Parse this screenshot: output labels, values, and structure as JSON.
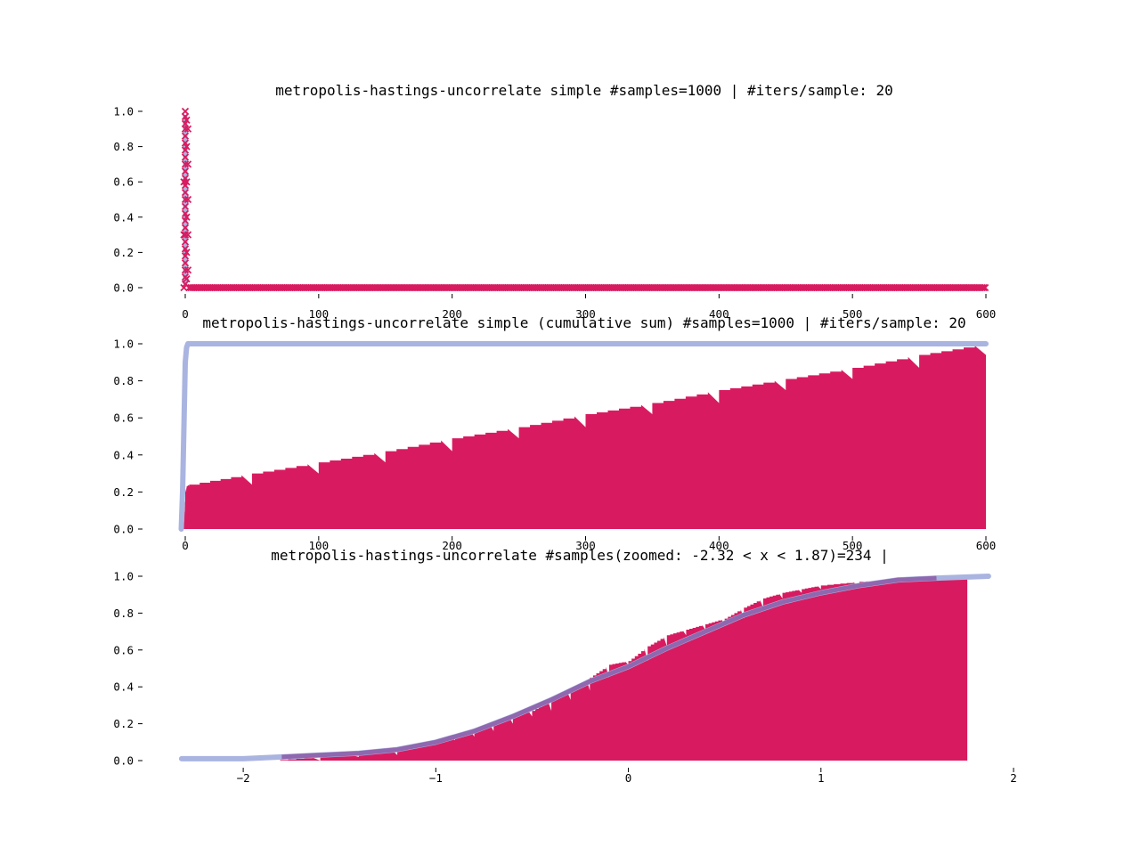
{
  "colors": {
    "samples": "#d81b60",
    "reference": "#aab4e0",
    "overlap": "#8c5faa",
    "background": "#ffffff"
  },
  "chart_data": [
    {
      "type": "scatter",
      "title": "metropolis-hastings-uncorrelate simple #samples=1000 | #iters/sample: 20",
      "xlabel": "",
      "ylabel": "",
      "xlim": [
        0,
        600
      ],
      "ylim": [
        0.0,
        1.0
      ],
      "xticks": [
        {
          "v": 0,
          "label": "0"
        },
        {
          "v": 100,
          "label": "100"
        },
        {
          "v": 200,
          "label": "200"
        },
        {
          "v": 300,
          "label": "300"
        },
        {
          "v": 400,
          "label": "400"
        },
        {
          "v": 500,
          "label": "500"
        },
        {
          "v": 600,
          "label": "600"
        }
      ],
      "yticks": [
        {
          "v": 0.0,
          "label": "0.0"
        },
        {
          "v": 0.2,
          "label": "0.2"
        },
        {
          "v": 0.4,
          "label": "0.4"
        },
        {
          "v": 0.6,
          "label": "0.6"
        },
        {
          "v": 0.8,
          "label": "0.8"
        },
        {
          "v": 1.0,
          "label": "1.0"
        }
      ],
      "series": [
        {
          "marker": "x",
          "description_points": [
            [
              0,
              1.0
            ],
            [
              0,
              0.97
            ],
            [
              0,
              0.93
            ],
            [
              0,
              0.9
            ],
            [
              0,
              0.86
            ],
            [
              0,
              0.82
            ],
            [
              0,
              0.78
            ],
            [
              0,
              0.74
            ],
            [
              0,
              0.7
            ],
            [
              0,
              0.66
            ],
            [
              0,
              0.62
            ],
            [
              0,
              0.58
            ],
            [
              0,
              0.54
            ],
            [
              0,
              0.5
            ],
            [
              0,
              0.46
            ],
            [
              0,
              0.42
            ],
            [
              0,
              0.38
            ],
            [
              0,
              0.34
            ],
            [
              0,
              0.3
            ],
            [
              0,
              0.26
            ],
            [
              0,
              0.22
            ],
            [
              0,
              0.18
            ],
            [
              0,
              0.14
            ],
            [
              0,
              0.1
            ],
            [
              0,
              0.06
            ],
            [
              0,
              0.02
            ],
            [
              1,
              0.95
            ],
            [
              1,
              0.8
            ],
            [
              1,
              0.6
            ],
            [
              1,
              0.4
            ],
            [
              1,
              0.2
            ],
            [
              1,
              0.05
            ],
            [
              2,
              0.9
            ],
            [
              2,
              0.7
            ],
            [
              2,
              0.5
            ],
            [
              2,
              0.3
            ],
            [
              2,
              0.1
            ],
            [
              -1,
              0.6
            ],
            [
              -1,
              0.3
            ],
            [
              -1,
              0.0
            ]
          ],
          "zero_range": [
            3,
            600
          ]
        }
      ],
      "grid": false,
      "legend": "none"
    },
    {
      "type": "area",
      "title": "metropolis-hastings-uncorrelate simple (cumulative sum) #samples=1000 | #iters/sample: 20",
      "xlabel": "",
      "ylabel": "",
      "xlim": [
        0,
        600
      ],
      "ylim": [
        0.0,
        1.0
      ],
      "xticks": [
        {
          "v": 0,
          "label": "0"
        },
        {
          "v": 100,
          "label": "100"
        },
        {
          "v": 200,
          "label": "200"
        },
        {
          "v": 300,
          "label": "300"
        },
        {
          "v": 400,
          "label": "400"
        },
        {
          "v": 500,
          "label": "500"
        },
        {
          "v": 600,
          "label": "600"
        }
      ],
      "yticks": [
        {
          "v": 0.0,
          "label": "0.0"
        },
        {
          "v": 0.2,
          "label": "0.2"
        },
        {
          "v": 0.4,
          "label": "0.4"
        },
        {
          "v": 0.6,
          "label": "0.6"
        },
        {
          "v": 0.8,
          "label": "0.8"
        },
        {
          "v": 1.0,
          "label": "1.0"
        }
      ],
      "series": [
        {
          "kind": "bars",
          "x": [
            -3,
            -1,
            0,
            1,
            3,
            50,
            100,
            150,
            200,
            250,
            300,
            350,
            400,
            450,
            500,
            550,
            600
          ],
          "y": [
            0.0,
            0.04,
            0.2,
            0.23,
            0.24,
            0.3,
            0.36,
            0.42,
            0.49,
            0.55,
            0.62,
            0.68,
            0.75,
            0.81,
            0.87,
            0.94,
            1.0
          ]
        },
        {
          "kind": "line",
          "x": [
            -3,
            -2,
            -1,
            0,
            1,
            2,
            3,
            600
          ],
          "y": [
            0.0,
            0.2,
            0.55,
            0.9,
            0.98,
            1.0,
            1.0,
            1.0
          ]
        }
      ],
      "grid": false,
      "legend": "none"
    },
    {
      "type": "area",
      "title": "metropolis-hastings-uncorrelate #samples(zoomed: -2.32 < x < 1.87)=234 |",
      "xlabel": "",
      "ylabel": "",
      "xlim": [
        -2.5,
        2.0
      ],
      "ylim": [
        0.0,
        1.0
      ],
      "xticks": [
        {
          "v": -2,
          "label": "−2"
        },
        {
          "v": -1,
          "label": "−1"
        },
        {
          "v": 0,
          "label": "0"
        },
        {
          "v": 1,
          "label": "1"
        },
        {
          "v": 2,
          "label": "2"
        }
      ],
      "yticks": [
        {
          "v": 0.0,
          "label": "0.0"
        },
        {
          "v": 0.2,
          "label": "0.2"
        },
        {
          "v": 0.4,
          "label": "0.4"
        },
        {
          "v": 0.6,
          "label": "0.6"
        },
        {
          "v": 0.8,
          "label": "0.8"
        },
        {
          "v": 1.0,
          "label": "1.0"
        }
      ],
      "series": [
        {
          "kind": "bars",
          "x": [
            -1.85,
            -1.6,
            -1.4,
            -1.2,
            -1.1,
            -1.0,
            -0.9,
            -0.8,
            -0.7,
            -0.6,
            -0.5,
            -0.4,
            -0.3,
            -0.2,
            -0.1,
            0.0,
            0.1,
            0.2,
            0.3,
            0.4,
            0.5,
            0.6,
            0.7,
            0.8,
            0.9,
            1.0,
            1.2,
            1.4,
            1.6,
            1.76
          ],
          "y": [
            0.0,
            0.02,
            0.03,
            0.07,
            0.09,
            0.11,
            0.13,
            0.16,
            0.2,
            0.24,
            0.27,
            0.33,
            0.38,
            0.45,
            0.52,
            0.54,
            0.62,
            0.68,
            0.71,
            0.74,
            0.77,
            0.83,
            0.88,
            0.91,
            0.93,
            0.95,
            0.97,
            0.98,
            0.99,
            1.0
          ]
        },
        {
          "kind": "line",
          "name": "",
          "x": [
            -2.32,
            -2.0,
            -1.8,
            -1.6,
            -1.4,
            -1.2,
            -1.0,
            -0.8,
            -0.6,
            -0.4,
            -0.2,
            0.0,
            0.2,
            0.4,
            0.6,
            0.8,
            1.0,
            1.2,
            1.4,
            1.6,
            1.87
          ],
          "y": [
            0.01,
            0.01,
            0.02,
            0.03,
            0.04,
            0.06,
            0.1,
            0.16,
            0.24,
            0.33,
            0.43,
            0.51,
            0.61,
            0.7,
            0.79,
            0.86,
            0.91,
            0.95,
            0.98,
            0.99,
            1.0
          ]
        }
      ],
      "grid": false,
      "legend": "none"
    }
  ]
}
